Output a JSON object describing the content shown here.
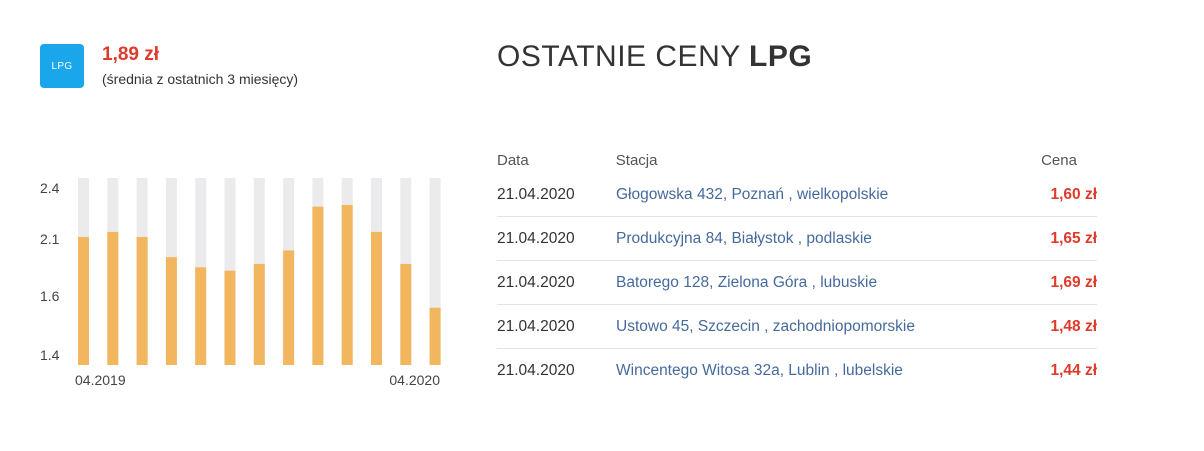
{
  "summary": {
    "badge_label": "LPG",
    "avg_price": "1,89 zł",
    "avg_note": "(średnia z ostatnich 3 miesięcy)"
  },
  "title": {
    "regular": "OSTATNIE CENY ",
    "bold": "LPG"
  },
  "table": {
    "headers": {
      "date": "Data",
      "station": "Stacja",
      "price": "Cena"
    },
    "rows": [
      {
        "date": "21.04.2020",
        "station": "Głogowska 432, Poznań , wielkopolskie",
        "price": "1,60 zł"
      },
      {
        "date": "21.04.2020",
        "station": "Produkcyjna 84, Białystok , podlaskie",
        "price": "1,65 zł"
      },
      {
        "date": "21.04.2020",
        "station": "Batorego 128, Zielona Góra , lubuskie",
        "price": "1,69 zł"
      },
      {
        "date": "21.04.2020",
        "station": "Ustowo 45, Szczecin , zachodniopomorskie",
        "price": "1,48 zł"
      },
      {
        "date": "21.04.2020",
        "station": "Wincentego Witosa 32a, Lublin , lubelskie",
        "price": "1,44 zł"
      }
    ]
  },
  "colors": {
    "accent_red": "#e03a2b",
    "badge_blue": "#1aa6ea",
    "bar_fill": "#f2b65e",
    "bar_track": "#ebebed",
    "link_blue": "#456a9c"
  },
  "chart_data": {
    "type": "bar",
    "x_start_label": "04.2019",
    "x_end_label": "04.2020",
    "y_ticks": [
      "2.4",
      "2.1",
      "1.6",
      "1.4"
    ],
    "y_tick_values": [
      2.4,
      2.1,
      1.6,
      1.4
    ],
    "ylim": [
      1.34,
      2.45
    ],
    "values": [
      2.1,
      2.13,
      2.1,
      1.98,
      1.92,
      1.9,
      1.94,
      2.02,
      2.28,
      2.29,
      2.13,
      1.94,
      1.68
    ],
    "grid": false,
    "legend": "none"
  }
}
